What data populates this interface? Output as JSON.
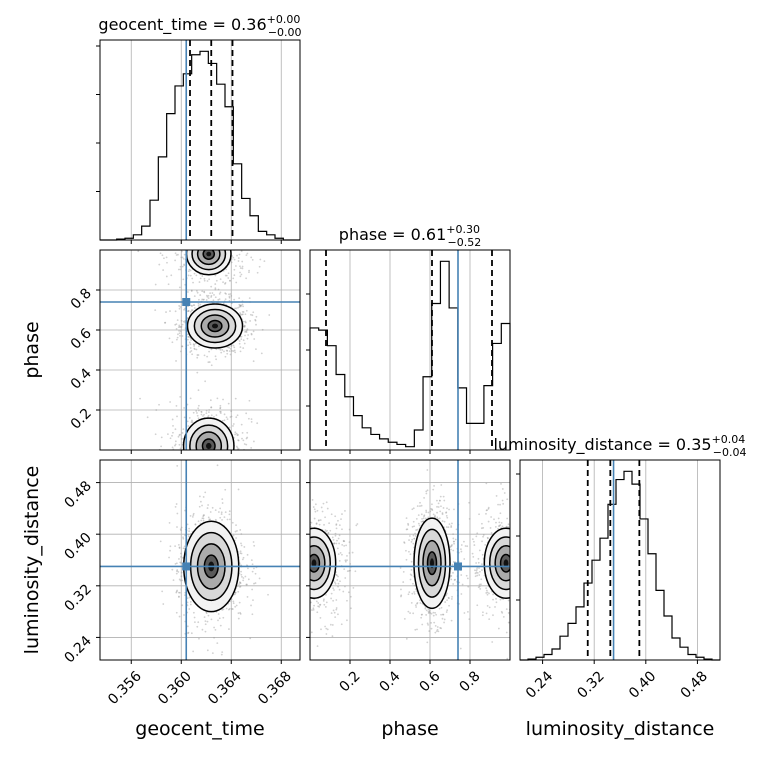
{
  "chart_data": {
    "type": "corner",
    "colors": {
      "truth": "#4682b4",
      "hist": "#000000",
      "grid": "#b0b0b0",
      "scatter": "#9a9a9a",
      "contour": "#000000"
    },
    "grid": true,
    "parameters": [
      {
        "name": "geocent_time",
        "xlabel": "geocent_time",
        "range": [
          0.3535,
          0.3695
        ],
        "ticks": [
          0.356,
          0.36,
          0.364,
          0.368
        ],
        "tick_labels": [
          "0.356",
          "0.360",
          "0.364",
          "0.368"
        ],
        "truth": 0.3604,
        "quantiles": [
          0.3607,
          0.3624,
          0.3641
        ],
        "title": {
          "main": "geocent_time = 0.36",
          "sup": "+0.00",
          "sub": "−0.00"
        },
        "hist_values": [
          0,
          0,
          0.5,
          1,
          3,
          8,
          23,
          48,
          73,
          89,
          96,
          107,
          109,
          102,
          90,
          77,
          44,
          24,
          14,
          5,
          3,
          1,
          0,
          0
        ]
      },
      {
        "name": "phase",
        "xlabel": "phase",
        "ylabel": "phase",
        "range": [
          0.0,
          1.0
        ],
        "ticks": [
          0.2,
          0.4,
          0.6,
          0.8
        ],
        "tick_labels": [
          "0.2",
          "0.4",
          "0.6",
          "0.8"
        ],
        "truth": 0.74,
        "quantiles": [
          0.08,
          0.61,
          0.91
        ],
        "title": {
          "main": "phase = 0.61",
          "sup": "+0.30",
          "sub": "−0.52"
        },
        "hist_values": [
          110,
          108,
          94,
          68,
          48,
          31,
          20,
          14,
          10,
          7,
          5,
          3,
          18,
          66,
          132,
          170,
          128,
          56,
          24,
          24,
          58,
          96,
          114
        ]
      },
      {
        "name": "luminosity_distance",
        "xlabel": "luminosity_distance",
        "ylabel": "luminosity_distance",
        "range": [
          0.205,
          0.515
        ],
        "ticks": [
          0.24,
          0.32,
          0.4,
          0.48
        ],
        "tick_labels": [
          "0.24",
          "0.32",
          "0.40",
          "0.48"
        ],
        "truth": 0.35,
        "quantiles": [
          0.31,
          0.345,
          0.39
        ],
        "title": {
          "main": "luminosity_distance = 0.35",
          "sup": "+0.04",
          "sub": "−0.04"
        },
        "hist_values": [
          0,
          1,
          3,
          6,
          12,
          26,
          40,
          58,
          84,
          109,
          133,
          170,
          197,
          206,
          192,
          154,
          116,
          76,
          48,
          24,
          14,
          6,
          3,
          1,
          0
        ]
      }
    ],
    "pairs": [
      {
        "x": "geocent_time",
        "y": "phase",
        "blobs": [
          {
            "cx": 0.3627,
            "cy": 0.62,
            "sx": 0.0011,
            "sy": 0.055,
            "w": 1.0
          },
          {
            "cx": 0.3622,
            "cy": 0.98,
            "sx": 0.0012,
            "sy": 0.07,
            "w": 0.55
          },
          {
            "cx": 0.3622,
            "cy": 0.02,
            "sx": 0.0013,
            "sy": 0.09,
            "w": 0.6
          }
        ]
      },
      {
        "x": "geocent_time",
        "y": "luminosity_distance",
        "blobs": [
          {
            "cx": 0.3624,
            "cy": 0.35,
            "sx": 0.0011,
            "sy": 0.035,
            "w": 1.0
          }
        ]
      },
      {
        "x": "phase",
        "y": "luminosity_distance",
        "blobs": [
          {
            "cx": 0.61,
            "cy": 0.355,
            "sx": 0.045,
            "sy": 0.035,
            "w": 1.0
          },
          {
            "cx": 0.02,
            "cy": 0.355,
            "sx": 0.07,
            "sy": 0.035,
            "w": 0.6
          },
          {
            "cx": 0.98,
            "cy": 0.355,
            "sx": 0.07,
            "sy": 0.035,
            "w": 0.6
          }
        ]
      }
    ]
  }
}
